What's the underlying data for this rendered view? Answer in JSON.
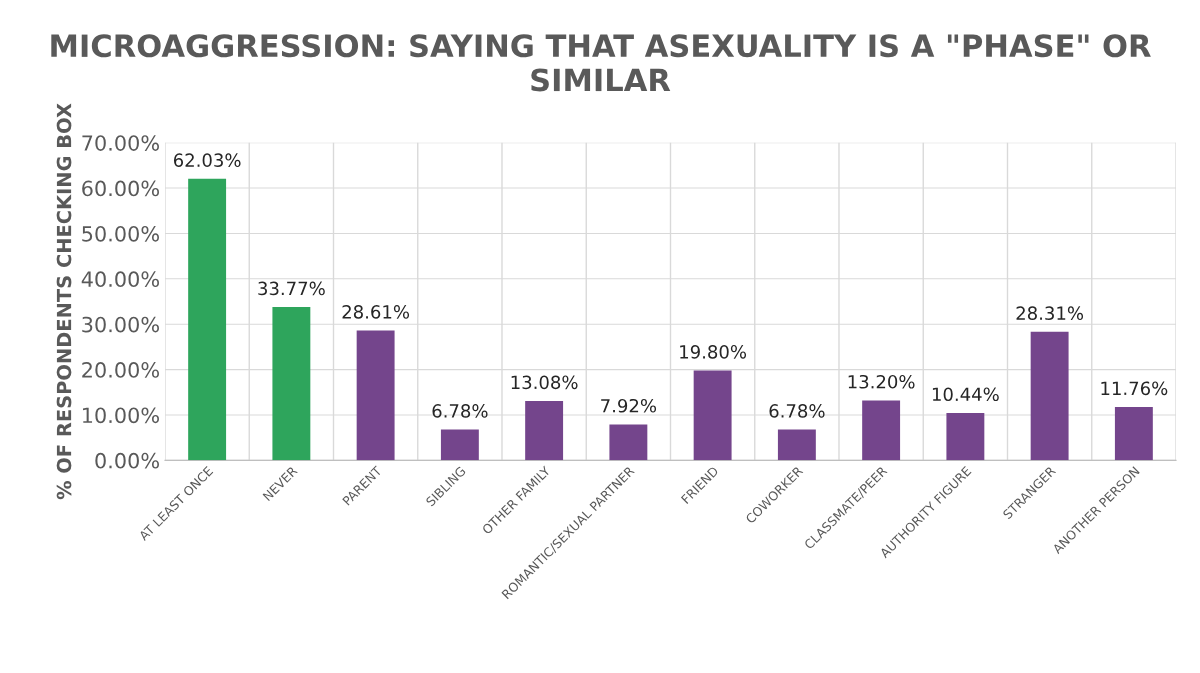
{
  "chart_data": {
    "type": "bar",
    "title": "MICROAGGRESSION: SAYING THAT ASEXUALITY IS A \"PHASE\" OR SIMILAR",
    "ylabel": "% OF RESPONDENTS CHECKING BOX",
    "categories": [
      "AT LEAST ONCE",
      "NEVER",
      "PARENT",
      "SIBLING",
      "OTHER FAMILY",
      "ROMANTIC/SEXUAL PARTNER",
      "FRIEND",
      "COWORKER",
      "CLASSMATE/PEER",
      "AUTHORITY FIGURE",
      "STRANGER",
      "ANOTHER PERSON"
    ],
    "values": [
      62.03,
      33.77,
      28.61,
      6.78,
      13.08,
      7.92,
      19.8,
      6.78,
      13.2,
      10.44,
      28.31,
      11.76
    ],
    "value_labels": [
      "62.03%",
      "33.77%",
      "28.61%",
      "6.78%",
      "13.08%",
      "7.92%",
      "19.80%",
      "6.78%",
      "13.20%",
      "10.44%",
      "28.31%",
      "11.76%"
    ],
    "colors": [
      "#2ea55c",
      "#2ea55c",
      "#74458c",
      "#74458c",
      "#74458c",
      "#74458c",
      "#74458c",
      "#74458c",
      "#74458c",
      "#74458c",
      "#74458c",
      "#74458c"
    ],
    "ylim": [
      0,
      70
    ],
    "yticks": [
      {
        "value": 0,
        "label": "0.00%"
      },
      {
        "value": 10,
        "label": "10.00%"
      },
      {
        "value": 20,
        "label": "20.00%"
      },
      {
        "value": 30,
        "label": "30.00%"
      },
      {
        "value": 40,
        "label": "40.00%"
      },
      {
        "value": 50,
        "label": "50.00%"
      },
      {
        "value": 60,
        "label": "60.00%"
      },
      {
        "value": 70,
        "label": "70.00%"
      }
    ],
    "grid": true
  }
}
